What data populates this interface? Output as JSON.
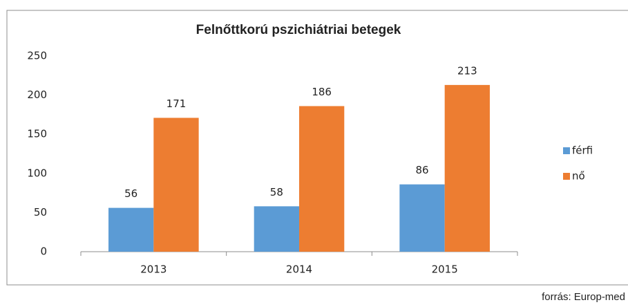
{
  "chart_data": {
    "type": "bar",
    "title": "Felnőttkorú pszichiátriai betegek",
    "categories": [
      "2013",
      "2014",
      "2015"
    ],
    "series": [
      {
        "name": "férfi",
        "color": "#5b9bd5",
        "values": [
          56,
          58,
          86
        ]
      },
      {
        "name": "nő",
        "color": "#ed7d31",
        "values": [
          171,
          186,
          213
        ]
      }
    ],
    "ylim": [
      0,
      250
    ],
    "yticks": [
      0,
      50,
      100,
      150,
      200,
      250
    ],
    "grid": false,
    "legend": "right",
    "source": "forrás: Europ-med"
  }
}
